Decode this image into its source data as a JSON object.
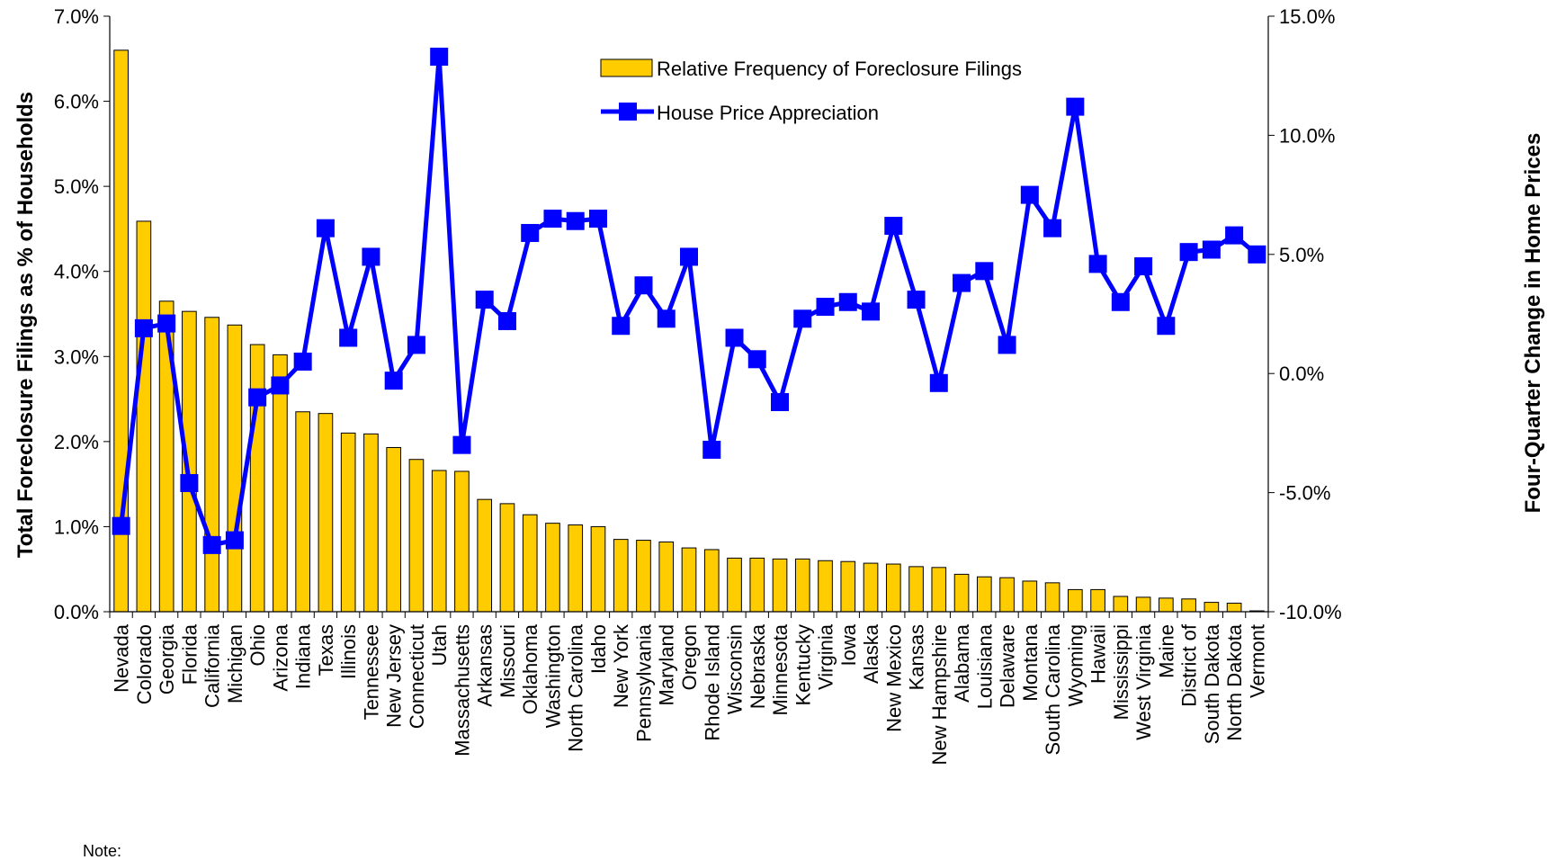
{
  "chart_data": {
    "type": "bar",
    "categories": [
      "Nevada",
      "Colorado",
      "Georgia",
      "Florida",
      "California",
      "Michigan",
      "Ohio",
      "Arizona",
      "Indiana",
      "Texas",
      "Illinois",
      "Tennessee",
      "New Jersey",
      "Connecticut",
      "Utah",
      "Massachusetts",
      "Arkansas",
      "Missouri",
      "Oklahoma",
      "Washington",
      "North Carolina",
      "Idaho",
      "New York",
      "Pennsylvania",
      "Maryland",
      "Oregon",
      "Rhode Island",
      "Wisconsin",
      "Nebraska",
      "Minnesota",
      "Kentucky",
      "Virginia",
      "Iowa",
      "Alaska",
      "New Mexico",
      "Kansas",
      "New Hampshire",
      "Alabama",
      "Louisiana",
      "Delaware",
      "Montana",
      "South Carolina",
      "Wyoming",
      "Hawaii",
      "Mississippi",
      "West Virginia",
      "Maine",
      "District of",
      "South Dakota",
      "North Dakota",
      "Vermont"
    ],
    "series": [
      {
        "name": "Relative Frequency of Foreclosure Filings",
        "kind": "bar",
        "axis": "left",
        "color": "#FFCC00",
        "values": [
          6.6,
          4.59,
          3.65,
          3.53,
          3.46,
          3.37,
          3.14,
          3.02,
          2.35,
          2.33,
          2.1,
          2.09,
          1.93,
          1.79,
          1.66,
          1.65,
          1.32,
          1.27,
          1.14,
          1.04,
          1.02,
          1.0,
          0.85,
          0.84,
          0.82,
          0.75,
          0.73,
          0.63,
          0.63,
          0.62,
          0.62,
          0.6,
          0.59,
          0.57,
          0.56,
          0.53,
          0.52,
          0.44,
          0.41,
          0.4,
          0.36,
          0.34,
          0.26,
          0.26,
          0.18,
          0.17,
          0.16,
          0.15,
          0.11,
          0.1,
          0.01
        ]
      },
      {
        "name": "House Price Appreciation",
        "kind": "line",
        "axis": "right",
        "color": "#0000FF",
        "values": [
          -6.4,
          1.9,
          2.1,
          -4.6,
          -7.2,
          -7.0,
          -1.0,
          -0.5,
          0.5,
          6.1,
          1.5,
          4.9,
          -0.3,
          1.2,
          13.3,
          -3.0,
          3.1,
          2.2,
          5.9,
          6.5,
          6.4,
          6.5,
          2.0,
          3.7,
          2.3,
          4.9,
          -3.2,
          1.5,
          0.6,
          -1.2,
          2.3,
          2.8,
          3.0,
          2.6,
          6.2,
          3.1,
          -0.4,
          3.8,
          4.3,
          1.2,
          7.5,
          6.1,
          11.2,
          4.6,
          3.0,
          4.5,
          2.0,
          5.1,
          5.2,
          5.8,
          5.0
        ]
      }
    ],
    "y_left": {
      "title": "Total Foreclosure Filings as % of Households",
      "ylim": [
        0,
        7
      ],
      "ticks": [
        "0.0%",
        "1.0%",
        "2.0%",
        "3.0%",
        "4.0%",
        "5.0%",
        "6.0%",
        "7.0%"
      ]
    },
    "y_right": {
      "title": "Four-Quarter Change in Home Prices",
      "ylim": [
        -10,
        15
      ],
      "ticks": [
        "-10.0%",
        "-5.0%",
        "0.0%",
        "5.0%",
        "10.0%",
        "15.0%"
      ]
    },
    "legend_placement": "top-center",
    "grid": false,
    "note": "Note:"
  }
}
